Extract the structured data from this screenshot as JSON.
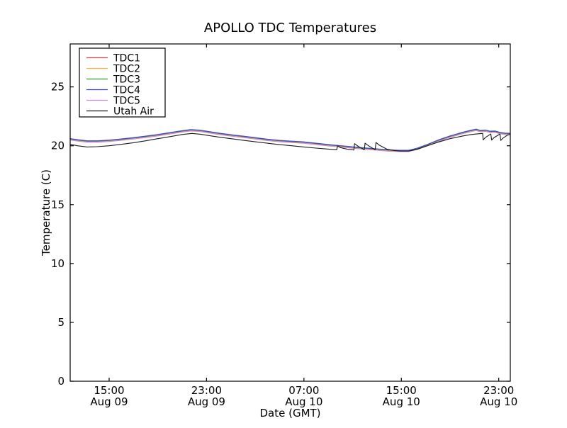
{
  "figure": {
    "background": "#ffffff",
    "frame_color": "#000000"
  },
  "chart_data": {
    "type": "line",
    "title": "APOLLO TDC Temperatures",
    "xlabel": "Date (GMT)",
    "ylabel": "Temperature (C)",
    "grid": false,
    "legend_position": "upper left",
    "x_axis_unit": "hours since Aug 09 00:00 GMT",
    "xlim": [
      11.8,
      47.95
    ],
    "ylim": [
      0,
      28.65
    ],
    "x_ticks": [
      {
        "x": 15,
        "time": "15:00",
        "date": "Aug 09"
      },
      {
        "x": 23,
        "time": "23:00",
        "date": "Aug 09"
      },
      {
        "x": 31,
        "time": "07:00",
        "date": "Aug 10"
      },
      {
        "x": 39,
        "time": "15:00",
        "date": "Aug 10"
      },
      {
        "x": 47,
        "time": "23:00",
        "date": "Aug 10"
      }
    ],
    "y_ticks": [
      0,
      5,
      10,
      15,
      20,
      25
    ],
    "tdc_base_points": [
      [
        11.8,
        20.55
      ],
      [
        12.4,
        20.46
      ],
      [
        13.2,
        20.36
      ],
      [
        14.0,
        20.36
      ],
      [
        15,
        20.42
      ],
      [
        16,
        20.52
      ],
      [
        17,
        20.63
      ],
      [
        18,
        20.76
      ],
      [
        19,
        20.9
      ],
      [
        20,
        21.06
      ],
      [
        21,
        21.22
      ],
      [
        21.7,
        21.32
      ],
      [
        22.4,
        21.28
      ],
      [
        23,
        21.18
      ],
      [
        24,
        21.02
      ],
      [
        25,
        20.88
      ],
      [
        26,
        20.76
      ],
      [
        27,
        20.63
      ],
      [
        28,
        20.5
      ],
      [
        29,
        20.4
      ],
      [
        30,
        20.33
      ],
      [
        31,
        20.27
      ],
      [
        32,
        20.16
      ],
      [
        33,
        20.05
      ],
      [
        34,
        19.95
      ],
      [
        35,
        19.85
      ],
      [
        36,
        19.76
      ],
      [
        37,
        19.68
      ],
      [
        38,
        19.6
      ],
      [
        38.8,
        19.56
      ],
      [
        39.6,
        19.56
      ],
      [
        40.3,
        19.74
      ],
      [
        41,
        20.0
      ],
      [
        42,
        20.42
      ],
      [
        43,
        20.78
      ],
      [
        44,
        21.08
      ],
      [
        44.7,
        21.26
      ],
      [
        45.15,
        21.36
      ],
      [
        45.5,
        21.24
      ],
      [
        45.9,
        21.28
      ],
      [
        46.3,
        21.18
      ],
      [
        46.7,
        21.2
      ],
      [
        47.1,
        21.08
      ],
      [
        47.5,
        21.02
      ],
      [
        47.95,
        21.0
      ]
    ],
    "series": [
      {
        "name": "TDC1",
        "color": "#e5413c",
        "offset": 0.0
      },
      {
        "name": "TDC2",
        "color": "#fbae3d",
        "offset": -0.03
      },
      {
        "name": "TDC3",
        "color": "#2f8f2f",
        "offset": 0.03
      },
      {
        "name": "TDC4",
        "color": "#4343e8",
        "offset": 0.06
      },
      {
        "name": "TDC5",
        "color": "#cf85d9",
        "offset": -0.06
      },
      {
        "name": "Utah Air",
        "color": "#1a1a1a",
        "points": [
          [
            11.8,
            20.12
          ],
          [
            12.4,
            20.0
          ],
          [
            13.2,
            19.9
          ],
          [
            14.0,
            19.92
          ],
          [
            15,
            20.0
          ],
          [
            16,
            20.12
          ],
          [
            17,
            20.26
          ],
          [
            18,
            20.42
          ],
          [
            19,
            20.6
          ],
          [
            20,
            20.78
          ],
          [
            21,
            20.96
          ],
          [
            21.8,
            21.05
          ],
          [
            22.5,
            20.98
          ],
          [
            23,
            20.9
          ],
          [
            24,
            20.74
          ],
          [
            25,
            20.6
          ],
          [
            26,
            20.47
          ],
          [
            27,
            20.34
          ],
          [
            28,
            20.22
          ],
          [
            29,
            20.1
          ],
          [
            30,
            20.0
          ],
          [
            31,
            19.9
          ],
          [
            32,
            19.8
          ],
          [
            33,
            19.72
          ],
          [
            33.7,
            19.66
          ],
          [
            33.76,
            20.0
          ],
          [
            34.0,
            19.84
          ],
          [
            34.6,
            19.7
          ],
          [
            35.1,
            19.64
          ],
          [
            35.16,
            20.18
          ],
          [
            35.45,
            19.95
          ],
          [
            35.95,
            19.66
          ],
          [
            36.02,
            20.22
          ],
          [
            36.3,
            20.0
          ],
          [
            36.85,
            19.66
          ],
          [
            36.92,
            20.28
          ],
          [
            37.2,
            20.05
          ],
          [
            37.8,
            19.72
          ],
          [
            38.4,
            19.6
          ],
          [
            38.9,
            19.55
          ],
          [
            39.6,
            19.55
          ],
          [
            40.3,
            19.7
          ],
          [
            41,
            19.95
          ],
          [
            42,
            20.3
          ],
          [
            43,
            20.6
          ],
          [
            44,
            20.82
          ],
          [
            44.7,
            20.95
          ],
          [
            45.3,
            21.02
          ],
          [
            45.68,
            21.05
          ],
          [
            45.72,
            20.5
          ],
          [
            45.9,
            20.7
          ],
          [
            46.35,
            21.0
          ],
          [
            46.42,
            20.48
          ],
          [
            46.6,
            20.68
          ],
          [
            47.1,
            21.0
          ],
          [
            47.17,
            20.45
          ],
          [
            47.35,
            20.65
          ],
          [
            47.7,
            20.9
          ],
          [
            47.95,
            20.97
          ]
        ]
      }
    ],
    "legend_entries": [
      "TDC1",
      "TDC2",
      "TDC3",
      "TDC4",
      "TDC5",
      "Utah Air"
    ]
  }
}
